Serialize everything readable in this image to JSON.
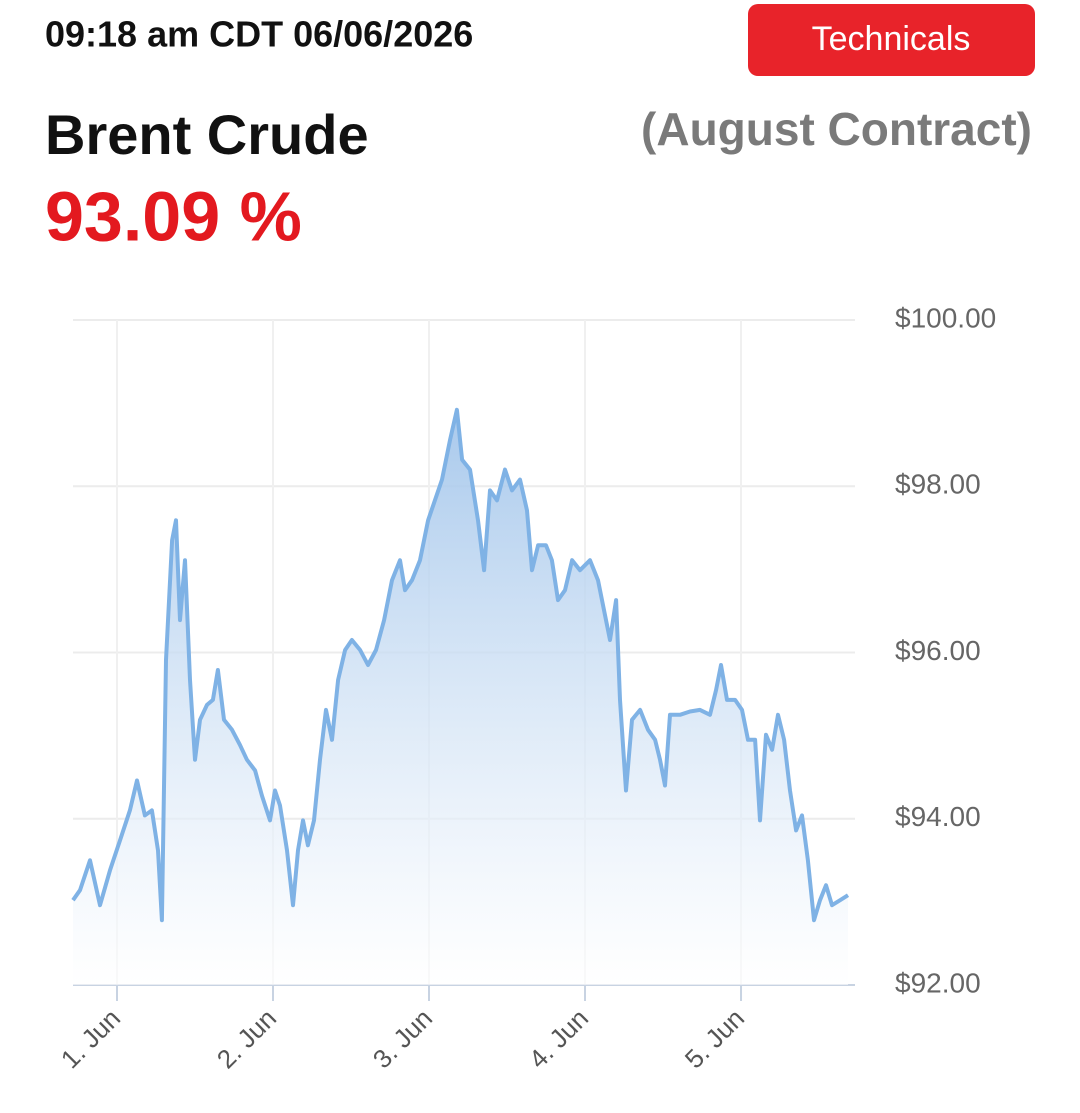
{
  "header": {
    "timestamp": "09:18 am CDT 06/06/2026",
    "button": "Technicals",
    "instrument": "Brent Crude",
    "contract": "(August Contract)",
    "price": "93.09 %"
  },
  "chart_data": {
    "type": "area",
    "x": [
      0.718,
      0.763,
      0.827,
      0.891,
      0.955,
      1.019,
      1.083,
      1.128,
      1.179,
      1.224,
      1.263,
      1.288,
      1.314,
      1.353,
      1.378,
      1.404,
      1.436,
      1.468,
      1.5,
      1.532,
      1.577,
      1.615,
      1.647,
      1.686,
      1.737,
      1.788,
      1.833,
      1.885,
      1.929,
      1.981,
      2.013,
      2.045,
      2.09,
      2.128,
      2.16,
      2.192,
      2.224,
      2.263,
      2.301,
      2.34,
      2.378,
      2.417,
      2.462,
      2.506,
      2.558,
      2.609,
      2.66,
      2.712,
      2.763,
      2.814,
      2.846,
      2.891,
      2.942,
      2.994,
      3.038,
      3.083,
      3.135,
      3.179,
      3.212,
      3.263,
      3.314,
      3.353,
      3.391,
      3.436,
      3.487,
      3.532,
      3.583,
      3.628,
      3.66,
      3.699,
      3.75,
      3.788,
      3.827,
      3.872,
      3.917,
      3.968,
      4.032,
      4.083,
      4.122,
      4.16,
      4.199,
      4.224,
      4.263,
      4.301,
      4.353,
      4.404,
      4.449,
      4.481,
      4.513,
      4.545,
      4.609,
      4.673,
      4.737,
      4.801,
      4.84,
      4.872,
      4.91,
      4.962,
      5.006,
      5.045,
      5.09,
      5.122,
      5.16,
      5.199,
      5.237,
      5.276,
      5.314,
      5.353,
      5.391,
      5.429,
      5.468,
      5.506,
      5.545,
      5.583,
      5.635,
      5.686
    ],
    "values": [
      93.02,
      93.14,
      93.5,
      92.96,
      93.38,
      93.74,
      94.1,
      94.46,
      94.04,
      94.1,
      93.62,
      92.78,
      95.91,
      97.35,
      97.59,
      96.39,
      97.11,
      95.67,
      94.71,
      95.19,
      95.37,
      95.43,
      95.79,
      95.19,
      95.07,
      94.89,
      94.71,
      94.58,
      94.28,
      93.98,
      94.34,
      94.16,
      93.62,
      92.96,
      93.62,
      93.98,
      93.68,
      93.98,
      94.71,
      95.31,
      94.95,
      95.67,
      96.03,
      96.15,
      96.03,
      95.85,
      96.03,
      96.39,
      96.87,
      97.11,
      96.75,
      96.87,
      97.11,
      97.59,
      97.83,
      98.08,
      98.56,
      98.92,
      98.32,
      98.2,
      97.59,
      96.99,
      97.95,
      97.83,
      98.2,
      97.95,
      98.08,
      97.71,
      96.99,
      97.29,
      97.29,
      97.11,
      96.63,
      96.75,
      97.11,
      96.99,
      97.11,
      96.87,
      96.51,
      96.15,
      96.63,
      95.43,
      94.34,
      95.19,
      95.31,
      95.07,
      94.95,
      94.71,
      94.4,
      95.25,
      95.25,
      95.29,
      95.31,
      95.25,
      95.55,
      95.85,
      95.43,
      95.43,
      95.31,
      94.95,
      94.95,
      93.98,
      95.01,
      94.83,
      95.25,
      94.95,
      94.34,
      93.86,
      94.04,
      93.5,
      92.78,
      93.02,
      93.2,
      92.96,
      93.02,
      93.08
    ],
    "color": "#7fb2e5",
    "xlim": [
      0.718,
      5.705
    ],
    "xticks": [
      {
        "value": 1,
        "label": "1. Jun"
      },
      {
        "value": 2,
        "label": "2. Jun"
      },
      {
        "value": 3,
        "label": "3. Jun"
      },
      {
        "value": 4,
        "label": "4. Jun"
      },
      {
        "value": 5,
        "label": "5. Jun"
      }
    ],
    "ylim": [
      92,
      100
    ],
    "yticks": [
      {
        "value": 92,
        "label": "$92.00"
      },
      {
        "value": 94,
        "label": "$94.00"
      },
      {
        "value": 96,
        "label": "$96.00"
      },
      {
        "value": 98,
        "label": "$98.00"
      },
      {
        "value": 100,
        "label": "$100.00"
      }
    ],
    "grid": true
  }
}
